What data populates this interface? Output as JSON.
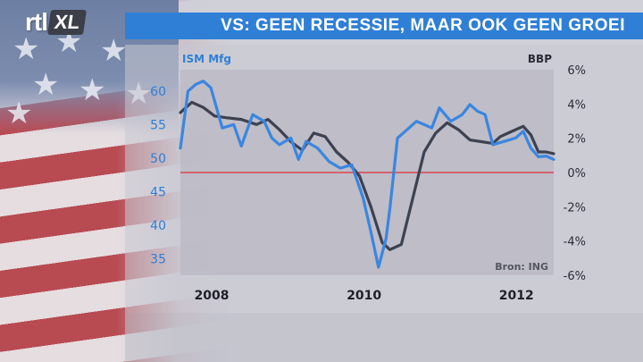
{
  "header": {
    "logo_rtl": "rtl",
    "logo_xl": "XL",
    "title": "VS: GEEN RECESSIE, MAAR OOK GEEN GROEI"
  },
  "colors": {
    "title_bar": "#2f7fd6",
    "ism_series": "#3a86e0",
    "bbp_series": "#3d4150",
    "zero_line": "#e03030",
    "left_axis_text": "#2f7fd6"
  },
  "icons": {
    "background": "us-flag-icon"
  },
  "chart_data": {
    "type": "line",
    "title": "VS: GEEN RECESSIE, MAAR OOK GEEN GROEI",
    "source": "Bron: ING",
    "x_ticks": [
      "2008",
      "2010",
      "2012"
    ],
    "x_tick_values": [
      2008.0,
      2010.0,
      2012.0
    ],
    "xlim": [
      2007.8,
      2012.7
    ],
    "left_axis": {
      "label": "ISM Mfg",
      "ticks": [
        "60",
        "55",
        "50",
        "45",
        "40",
        "35"
      ],
      "tick_values": [
        60,
        55,
        50,
        45,
        40,
        35
      ],
      "ylim": [
        32.5,
        63.2
      ]
    },
    "right_axis": {
      "label": "BBP",
      "ticks": [
        "6%",
        "4%",
        "2%",
        "0%",
        "-2%",
        "-4%",
        "-6%"
      ],
      "tick_values": [
        6,
        4,
        2,
        0,
        -2,
        -4,
        -6
      ],
      "ylim": [
        -6.0,
        6.0
      ]
    },
    "zero_line_value": 0,
    "grid": false,
    "series": [
      {
        "name": "ISM Mfg",
        "axis": "left",
        "x": [
          2007.8,
          2007.9,
          2008.0,
          2008.1,
          2008.2,
          2008.35,
          2008.5,
          2008.6,
          2008.75,
          2008.9,
          2009.0,
          2009.1,
          2009.25,
          2009.35,
          2009.45,
          2009.6,
          2009.75,
          2009.9,
          2010.05,
          2010.2,
          2010.3,
          2010.4,
          2010.5,
          2010.55,
          2010.65,
          2010.75,
          2010.9,
          2011.0,
          2011.1,
          2011.2,
          2011.35,
          2011.5,
          2011.6,
          2011.7,
          2011.8,
          2011.9,
          2012.05,
          2012.2,
          2012.3,
          2012.4,
          2012.5,
          2012.6,
          2012.7
        ],
        "y": [
          51.5,
          60,
          61,
          61.5,
          60.5,
          54.5,
          55,
          51.8,
          56.5,
          55.5,
          53,
          52,
          53,
          49.8,
          52.5,
          51.5,
          49.5,
          48.5,
          49,
          44,
          39,
          33.7,
          38,
          42.5,
          53,
          54,
          55.5,
          55,
          54.5,
          57.5,
          55.5,
          56.5,
          58,
          57,
          56.5,
          52,
          52.5,
          53,
          54,
          51.5,
          50.2,
          50.3,
          49.8
        ]
      },
      {
        "name": "BBP",
        "axis": "right",
        "x": [
          2007.8,
          2007.95,
          2008.1,
          2008.25,
          2008.4,
          2008.6,
          2008.8,
          2008.95,
          2009.1,
          2009.25,
          2009.4,
          2009.55,
          2009.7,
          2009.85,
          2010.0,
          2010.15,
          2010.3,
          2010.45,
          2010.55,
          2010.7,
          2010.85,
          2011.0,
          2011.15,
          2011.3,
          2011.45,
          2011.6,
          2011.75,
          2011.9,
          2012.0,
          2012.15,
          2012.3,
          2012.4,
          2012.5,
          2012.6,
          2012.7
        ],
        "y": [
          3.5,
          4.1,
          3.8,
          3.3,
          3.2,
          3.1,
          2.8,
          3.1,
          2.5,
          1.8,
          1.3,
          2.3,
          2.1,
          1.2,
          0.6,
          -0.2,
          -2.0,
          -4.1,
          -4.5,
          -4.2,
          -1.5,
          1.2,
          2.3,
          2.9,
          2.5,
          1.9,
          1.8,
          1.7,
          2.1,
          2.4,
          2.7,
          2.2,
          1.2,
          1.2,
          1.1
        ]
      }
    ]
  }
}
